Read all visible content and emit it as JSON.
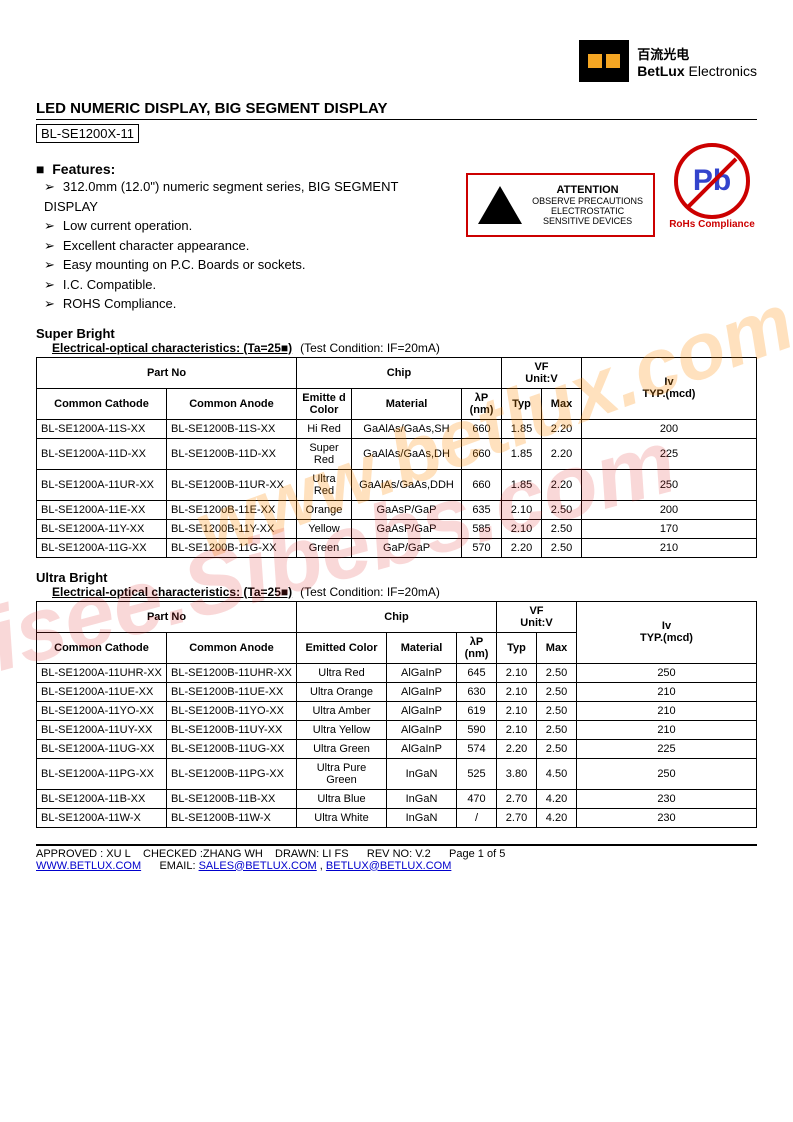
{
  "logo": {
    "cn": "百流光电",
    "en_bold": "BetLux",
    "en_light": " Electronics"
  },
  "title": "LED NUMERIC DISPLAY,   BIG SEGMENT DISPLAY",
  "part_no": "BL-SE1200X-11",
  "features_title": "Features:",
  "features": [
    "312.0mm (12.0\") numeric segment series, BIG SEGMENT DISPLAY",
    "Low current operation.",
    "Excellent character appearance.",
    "Easy mounting on P.C. Boards or sockets.",
    "I.C. Compatible.",
    "ROHS Compliance."
  ],
  "esd": {
    "title": "ATTENTION",
    "line1": "OBSERVE PRECAUTIONS",
    "line2": "ELECTROSTATIC",
    "line3": "SENSITIVE DEVICES"
  },
  "rohs": {
    "symbol": "Pb",
    "label": "RoHs Compliance"
  },
  "sb_title": "Super Bright",
  "char_title": "Electrical-optical characteristics: (Ta=25■)",
  "test_cond": "(Test Condition: IF=20mA)",
  "headers": {
    "partno": "Part No",
    "chip": "Chip",
    "vf": "VF",
    "vf_unit": "Unit:V",
    "iv": "Iv",
    "iv_unit": "TYP.(mcd)",
    "cc": "Common Cathode",
    "ca": "Common Anode",
    "emit": "Emitted Color",
    "emit_sb": "Emitte d Color",
    "mat": "Material",
    "lambda": "λP",
    "nm": "(nm)",
    "typ": "Typ",
    "max": "Max"
  },
  "sb_rows": [
    {
      "cc": "BL-SE1200A-11S-XX",
      "ca": "BL-SE1200B-11S-XX",
      "color": "Hi Red",
      "mat": "GaAlAs/GaAs,SH",
      "wl": "660",
      "typ": "1.85",
      "max": "2.20",
      "iv": "200"
    },
    {
      "cc": "BL-SE1200A-11D-XX",
      "ca": "BL-SE1200B-11D-XX",
      "color": "Super Red",
      "mat": "GaAlAs/GaAs,DH",
      "wl": "660",
      "typ": "1.85",
      "max": "2.20",
      "iv": "225"
    },
    {
      "cc": "BL-SE1200A-11UR-XX",
      "ca": "BL-SE1200B-11UR-XX",
      "color": "Ultra Red",
      "mat": "GaAlAs/GaAs,DDH",
      "wl": "660",
      "typ": "1.85",
      "max": "2.20",
      "iv": "250"
    },
    {
      "cc": "BL-SE1200A-11E-XX",
      "ca": "BL-SE1200B-11E-XX",
      "color": "Orange",
      "mat": "GaAsP/GaP",
      "wl": "635",
      "typ": "2.10",
      "max": "2.50",
      "iv": "200"
    },
    {
      "cc": "BL-SE1200A-11Y-XX",
      "ca": "BL-SE1200B-11Y-XX",
      "color": "Yellow",
      "mat": "GaAsP/GaP",
      "wl": "585",
      "typ": "2.10",
      "max": "2.50",
      "iv": "170"
    },
    {
      "cc": "BL-SE1200A-11G-XX",
      "ca": "BL-SE1200B-11G-XX",
      "color": "Green",
      "mat": "GaP/GaP",
      "wl": "570",
      "typ": "2.20",
      "max": "2.50",
      "iv": "210"
    }
  ],
  "ub_title": "Ultra Bright",
  "ub_rows": [
    {
      "cc": "BL-SE1200A-11UHR-XX",
      "ca": "BL-SE1200B-11UHR-XX",
      "color": "Ultra Red",
      "mat": "AlGaInP",
      "wl": "645",
      "typ": "2.10",
      "max": "2.50",
      "iv": "250"
    },
    {
      "cc": "BL-SE1200A-11UE-XX",
      "ca": "BL-SE1200B-11UE-XX",
      "color": "Ultra Orange",
      "mat": "AlGaInP",
      "wl": "630",
      "typ": "2.10",
      "max": "2.50",
      "iv": "210"
    },
    {
      "cc": "BL-SE1200A-11YO-XX",
      "ca": "BL-SE1200B-11YO-XX",
      "color": "Ultra Amber",
      "mat": "AlGaInP",
      "wl": "619",
      "typ": "2.10",
      "max": "2.50",
      "iv": "210"
    },
    {
      "cc": "BL-SE1200A-11UY-XX",
      "ca": "BL-SE1200B-11UY-XX",
      "color": "Ultra Yellow",
      "mat": "AlGaInP",
      "wl": "590",
      "typ": "2.10",
      "max": "2.50",
      "iv": "210"
    },
    {
      "cc": "BL-SE1200A-11UG-XX",
      "ca": "BL-SE1200B-11UG-XX",
      "color": "Ultra Green",
      "mat": "AlGaInP",
      "wl": "574",
      "typ": "2.20",
      "max": "2.50",
      "iv": "225"
    },
    {
      "cc": "BL-SE1200A-11PG-XX",
      "ca": "BL-SE1200B-11PG-XX",
      "color": "Ultra Pure Green",
      "mat": "InGaN",
      "wl": "525",
      "typ": "3.80",
      "max": "4.50",
      "iv": "250"
    },
    {
      "cc": "BL-SE1200A-11B-XX",
      "ca": "BL-SE1200B-11B-XX",
      "color": "Ultra Blue",
      "mat": "InGaN",
      "wl": "470",
      "typ": "2.70",
      "max": "4.20",
      "iv": "230"
    },
    {
      "cc": "BL-SE1200A-11W-X",
      "ca": "BL-SE1200B-11W-X",
      "color": "Ultra White",
      "mat": "InGaN",
      "wl": "/",
      "typ": "2.70",
      "max": "4.20",
      "iv": "230"
    }
  ],
  "footer": {
    "approved": "APPROVED : XU L",
    "checked": "CHECKED :ZHANG WH",
    "drawn": "DRAWN: LI FS",
    "rev": "REV NO: V.2",
    "page": "Page 1 of 5",
    "site": "WWW.BETLUX.COM",
    "email_label": "EMAIL: ",
    "email1": "SALES@BETLUX.COM",
    "email2": "BETLUX@BETLUX.COM"
  },
  "watermark1": "www.betlux.com",
  "watermark2": "isee.Sibebs.com"
}
